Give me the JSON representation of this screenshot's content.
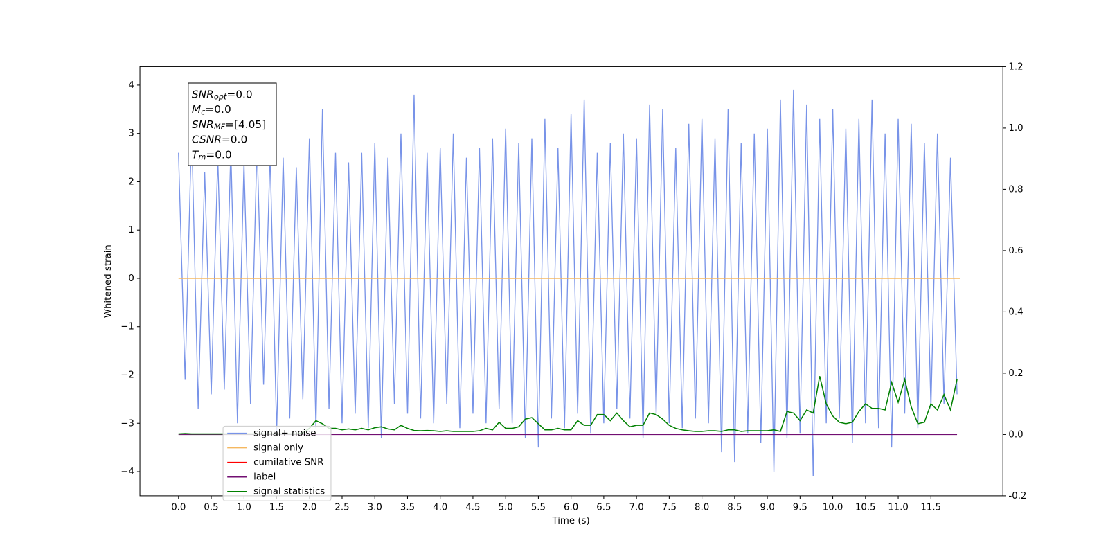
{
  "chart_data": {
    "type": "line",
    "xlabel": "Time (s)",
    "ylabel": "Whitened strain",
    "xlim": [
      -0.59,
      12.6
    ],
    "ylim": [
      -4.5,
      4.38
    ],
    "y2lim": [
      -0.2,
      1.2
    ],
    "xticks": [
      {
        "value": 0,
        "label": "0.0"
      },
      0.5,
      {
        "value": 1,
        "label": "1.0"
      },
      1.5,
      {
        "value": 2,
        "label": "2.0"
      },
      2.5,
      {
        "value": 3,
        "label": "3.0"
      },
      3.5,
      {
        "value": 4,
        "label": "4.0"
      },
      4.5,
      {
        "value": 5,
        "label": "5.0"
      },
      5.5,
      {
        "value": 6,
        "label": "6.0"
      },
      6.5,
      {
        "value": 7,
        "label": "7.0"
      },
      7.5,
      {
        "value": 8,
        "label": "8.0"
      },
      8.5,
      {
        "value": 9,
        "label": "9.0"
      },
      9.5,
      {
        "value": 10,
        "label": "10.0"
      },
      10.5,
      {
        "value": 11,
        "label": "11.0"
      },
      11.5
    ],
    "yticks": [
      {
        "value": -4,
        "label": "−4"
      },
      {
        "value": -3,
        "label": "−3"
      },
      {
        "value": -2,
        "label": "−2"
      },
      {
        "value": -1,
        "label": "−1"
      },
      0,
      1,
      2,
      3,
      4
    ],
    "y2ticks": [
      -0.2,
      {
        "value": 0,
        "label": "0.0"
      },
      0.2,
      0.4,
      0.6,
      0.8,
      {
        "value": 1,
        "label": "1.0"
      },
      1.2
    ],
    "legend": "lower left",
    "annotation_lines": [
      {
        "symbol": "SNR",
        "subscript": "opt",
        "text": "=0.0"
      },
      {
        "symbol": "M",
        "subscript": "c",
        "text": "=0.0"
      },
      {
        "symbol": "SNR",
        "subscript": "MF",
        "text": "=[4.05]"
      },
      {
        "symbol": "CSNR",
        "text": "=0.0"
      },
      {
        "symbol": "T",
        "subscript": "m",
        "text": "=0.0"
      }
    ],
    "series": [
      {
        "name": "signal+ noise",
        "color": "#7893e8",
        "axis": "y",
        "x": [
          0.0,
          0.1,
          0.2,
          0.3,
          0.4,
          0.5,
          0.6,
          0.7,
          0.8,
          0.9,
          1.0,
          1.1,
          1.2,
          1.3,
          1.4,
          1.5,
          1.6,
          1.7,
          1.8,
          1.9,
          2.0,
          2.1,
          2.2,
          2.3,
          2.4,
          2.5,
          2.6,
          2.7,
          2.8,
          2.9,
          3.0,
          3.1,
          3.2,
          3.3,
          3.4,
          3.5,
          3.6,
          3.7,
          3.8,
          3.9,
          4.0,
          4.1,
          4.2,
          4.3,
          4.4,
          4.5,
          4.6,
          4.7,
          4.8,
          4.9,
          5.0,
          5.1,
          5.2,
          5.3,
          5.4,
          5.5,
          5.6,
          5.7,
          5.8,
          5.9,
          6.0,
          6.1,
          6.2,
          6.3,
          6.4,
          6.5,
          6.6,
          6.7,
          6.8,
          6.9,
          7.0,
          7.1,
          7.2,
          7.3,
          7.4,
          7.5,
          7.6,
          7.7,
          7.8,
          7.9,
          8.0,
          8.1,
          8.2,
          8.3,
          8.4,
          8.5,
          8.6,
          8.7,
          8.8,
          8.9,
          9.0,
          9.1,
          9.2,
          9.3,
          9.4,
          9.5,
          9.6,
          9.7,
          9.8,
          9.9,
          10.0,
          10.1,
          10.2,
          10.3,
          10.4,
          10.5,
          10.6,
          10.7,
          10.8,
          10.9,
          11.0,
          11.1,
          11.2,
          11.3,
          11.4,
          11.5,
          11.6,
          11.7,
          11.8,
          11.9
        ],
        "values": [
          2.6,
          -2.1,
          3.1,
          -2.7,
          2.2,
          -2.4,
          2.5,
          -2.3,
          2.7,
          -3.0,
          2.4,
          -2.6,
          2.8,
          -2.2,
          2.6,
          -3.2,
          2.5,
          -2.9,
          2.3,
          -2.5,
          2.9,
          -3.1,
          3.5,
          -2.7,
          2.6,
          -3.0,
          2.4,
          -2.8,
          2.6,
          -3.1,
          2.8,
          -3.3,
          2.5,
          -2.6,
          3.0,
          -2.8,
          3.8,
          -2.9,
          2.6,
          -3.0,
          2.7,
          -2.6,
          3.0,
          -3.1,
          2.5,
          -2.8,
          2.7,
          -3.0,
          2.9,
          -2.7,
          3.1,
          -3.0,
          2.8,
          -3.3,
          2.9,
          -3.5,
          3.3,
          -2.9,
          2.7,
          -3.1,
          3.4,
          -2.8,
          3.7,
          -3.2,
          2.6,
          -3.0,
          2.8,
          -2.7,
          3.0,
          -2.9,
          2.9,
          -3.3,
          3.6,
          -2.8,
          3.5,
          -3.0,
          2.7,
          -3.1,
          3.2,
          -2.9,
          3.3,
          -3.0,
          2.9,
          -3.6,
          3.5,
          -3.8,
          2.8,
          -3.2,
          3.0,
          -3.4,
          3.1,
          -4.0,
          3.7,
          -3.3,
          3.9,
          -3.2,
          3.6,
          -4.1,
          3.3,
          -3.0,
          3.5,
          -2.9,
          3.1,
          -3.4,
          3.3,
          -3.0,
          3.7,
          -3.1,
          3.0,
          -3.5,
          3.3,
          -2.8,
          3.2,
          -3.1,
          2.8,
          -2.7,
          3.0,
          -2.6,
          2.5,
          -2.4
        ]
      },
      {
        "name": "signal only",
        "color": "#f5b860",
        "axis": "y",
        "x": [
          0.0,
          11.95
        ],
        "values": [
          0,
          0
        ]
      },
      {
        "name": "cumilative SNR",
        "color": "#ff0000",
        "axis": "y",
        "x": [],
        "values": []
      },
      {
        "name": "label",
        "color": "#720f72",
        "axis": "y2",
        "x": [
          0.0,
          11.9
        ],
        "values": [
          0,
          0
        ]
      },
      {
        "name": "signal statistics",
        "color": "#008000",
        "axis": "y2",
        "x": [
          0.0,
          0.1,
          0.2,
          0.3,
          0.4,
          0.5,
          0.6,
          0.7,
          0.8,
          0.9,
          1.0,
          1.1,
          1.2,
          1.3,
          1.4,
          1.5,
          1.6,
          1.7,
          1.8,
          1.9,
          2.0,
          2.1,
          2.2,
          2.3,
          2.4,
          2.5,
          2.6,
          2.7,
          2.8,
          2.9,
          3.0,
          3.1,
          3.2,
          3.3,
          3.4,
          3.5,
          3.6,
          3.7,
          3.8,
          3.9,
          4.0,
          4.1,
          4.2,
          4.3,
          4.4,
          4.5,
          4.6,
          4.7,
          4.8,
          4.9,
          5.0,
          5.1,
          5.2,
          5.3,
          5.4,
          5.5,
          5.6,
          5.7,
          5.8,
          5.9,
          6.0,
          6.1,
          6.2,
          6.3,
          6.4,
          6.5,
          6.6,
          6.7,
          6.8,
          6.9,
          7.0,
          7.1,
          7.2,
          7.3,
          7.4,
          7.5,
          7.6,
          7.7,
          7.8,
          7.9,
          8.0,
          8.1,
          8.2,
          8.3,
          8.4,
          8.5,
          8.6,
          8.7,
          8.8,
          8.9,
          9.0,
          9.1,
          9.2,
          9.3,
          9.4,
          9.5,
          9.6,
          9.7,
          9.8,
          9.9,
          10.0,
          10.1,
          10.2,
          10.3,
          10.4,
          10.5,
          10.6,
          10.7,
          10.8,
          10.9,
          11.0,
          11.1,
          11.2,
          11.3,
          11.4,
          11.5,
          11.6,
          11.7,
          11.8,
          11.9
        ],
        "values": [
          0.002,
          0.003,
          0.002,
          0.002,
          0.002,
          0.002,
          0.002,
          0.002,
          0.002,
          0.002,
          0.002,
          0.002,
          0.002,
          0.002,
          0.002,
          0.002,
          0.002,
          0.002,
          0.002,
          0.005,
          0.02,
          0.045,
          0.035,
          0.02,
          0.02,
          0.015,
          0.018,
          0.015,
          0.02,
          0.015,
          0.022,
          0.025,
          0.018,
          0.015,
          0.03,
          0.02,
          0.013,
          0.012,
          0.013,
          0.012,
          0.01,
          0.012,
          0.01,
          0.01,
          0.01,
          0.01,
          0.012,
          0.02,
          0.015,
          0.04,
          0.02,
          0.02,
          0.025,
          0.05,
          0.055,
          0.035,
          0.015,
          0.015,
          0.02,
          0.015,
          0.015,
          0.045,
          0.03,
          0.03,
          0.065,
          0.065,
          0.045,
          0.07,
          0.045,
          0.025,
          0.03,
          0.03,
          0.07,
          0.065,
          0.05,
          0.03,
          0.02,
          0.015,
          0.012,
          0.01,
          0.01,
          0.012,
          0.012,
          0.01,
          0.015,
          0.015,
          0.01,
          0.012,
          0.012,
          0.012,
          0.012,
          0.015,
          0.01,
          0.075,
          0.07,
          0.045,
          0.08,
          0.07,
          0.19,
          0.1,
          0.06,
          0.04,
          0.035,
          0.04,
          0.075,
          0.1,
          0.085,
          0.085,
          0.08,
          0.17,
          0.105,
          0.18,
          0.09,
          0.035,
          0.04,
          0.1,
          0.08,
          0.13,
          0.08,
          0.18
        ]
      }
    ]
  }
}
